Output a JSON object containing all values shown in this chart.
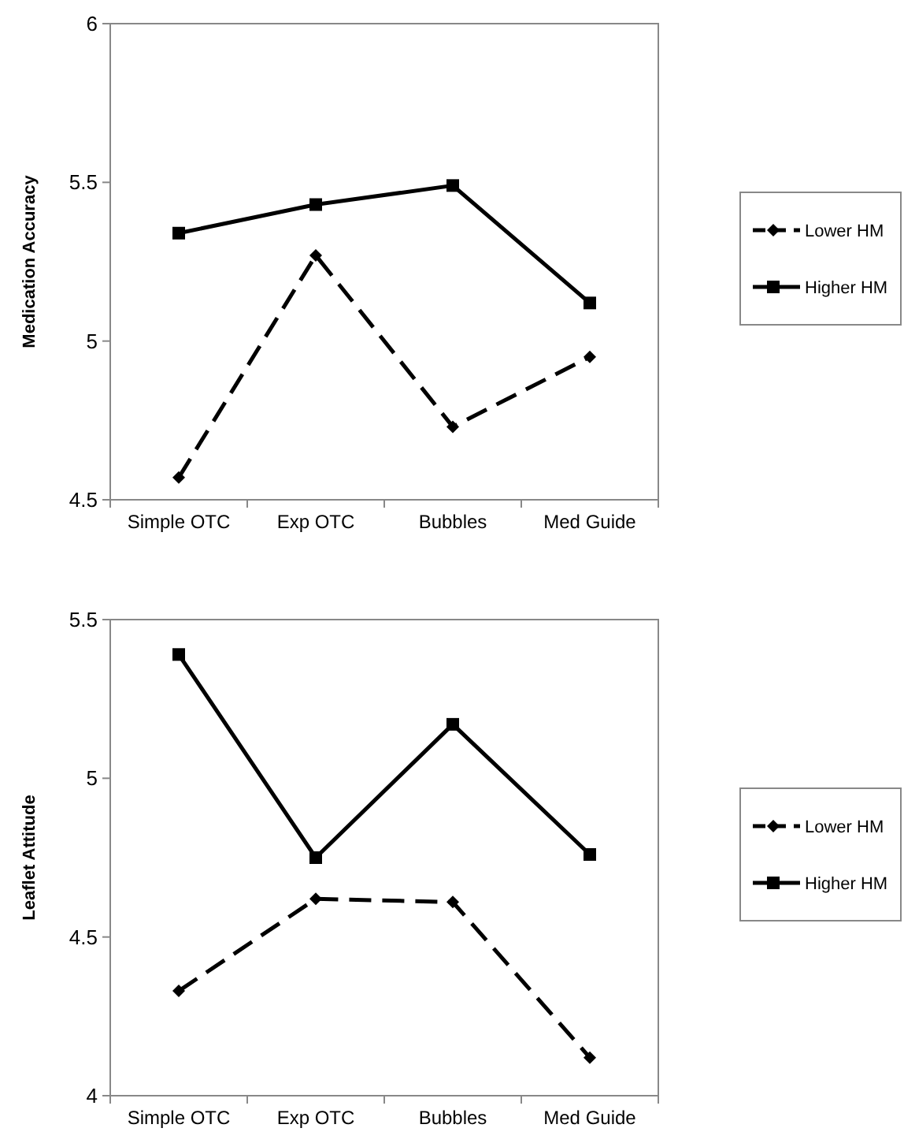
{
  "chart_data": [
    {
      "type": "line",
      "ylabel": "Medication Accuracy",
      "categories": [
        "Simple OTC",
        "Exp OTC",
        "Bubbles",
        "Med Guide"
      ],
      "ylim": [
        4.5,
        6
      ],
      "yticks": [
        4.5,
        5,
        5.5,
        6
      ],
      "grid": false,
      "legend": "right",
      "series": [
        {
          "name": "Lower HM",
          "color": "#000000",
          "marker": "diamond",
          "line_style": "dashed",
          "values": [
            4.57,
            5.27,
            4.73,
            4.95
          ]
        },
        {
          "name": "Higher HM",
          "color": "#000000",
          "marker": "square",
          "line_style": "solid",
          "values": [
            5.34,
            5.43,
            5.49,
            5.12
          ]
        }
      ]
    },
    {
      "type": "line",
      "ylabel": "Leaflet Attitude",
      "categories": [
        "Simple OTC",
        "Exp OTC",
        "Bubbles",
        "Med Guide"
      ],
      "ylim": [
        4,
        5.5
      ],
      "yticks": [
        4,
        4.5,
        5,
        5.5
      ],
      "grid": false,
      "legend": "right",
      "series": [
        {
          "name": "Lower HM",
          "color": "#000000",
          "marker": "diamond",
          "line_style": "dashed",
          "values": [
            4.33,
            4.62,
            4.61,
            4.12
          ]
        },
        {
          "name": "Higher HM",
          "color": "#000000",
          "marker": "square",
          "line_style": "solid",
          "values": [
            5.39,
            4.75,
            5.17,
            4.76
          ]
        }
      ]
    }
  ]
}
